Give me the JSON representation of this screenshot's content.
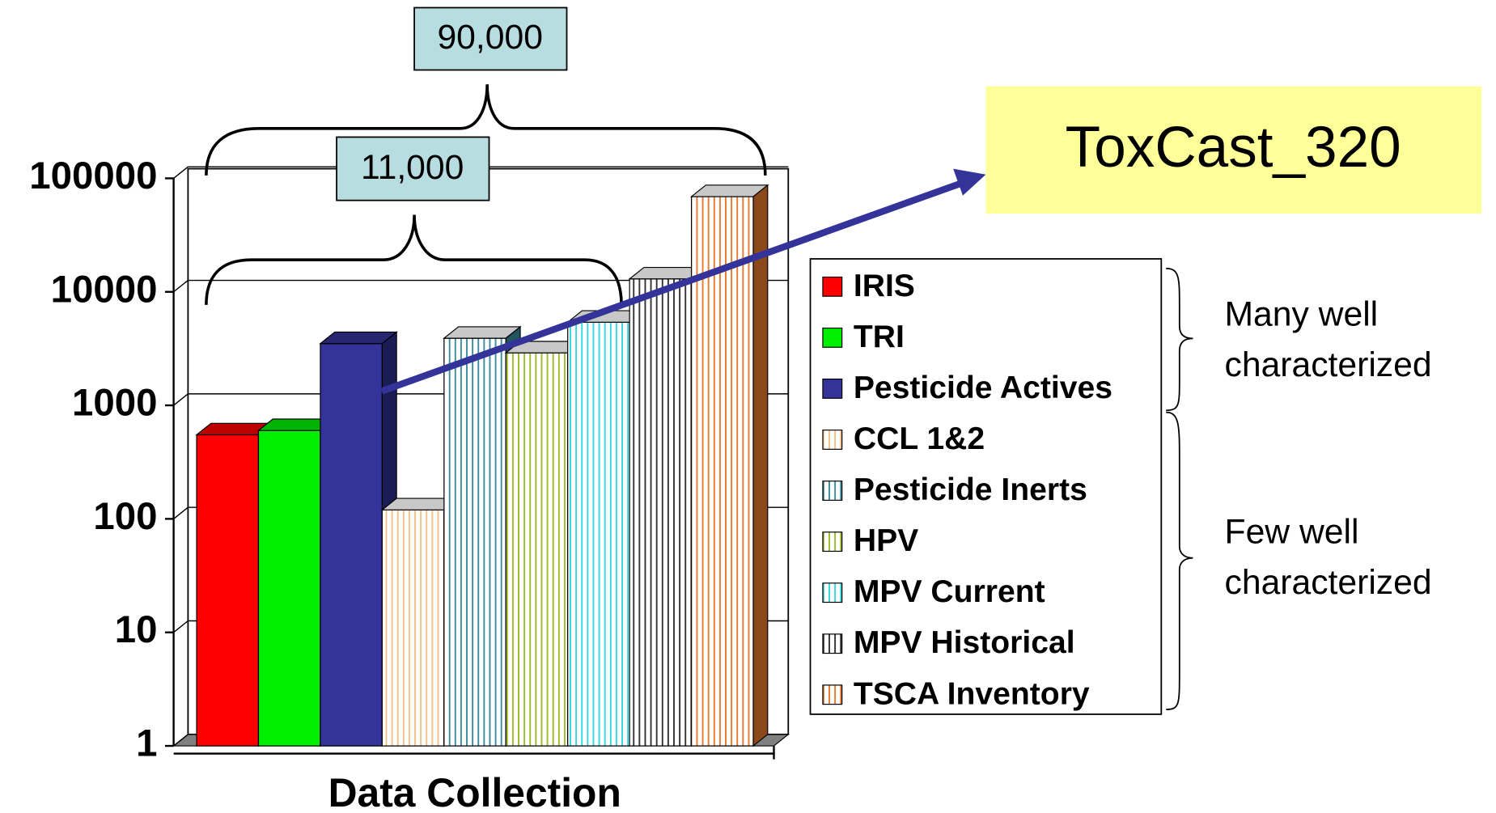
{
  "chart_data": {
    "type": "bar",
    "x_label": "Data Collection",
    "log_scale": true,
    "ylim": [
      1,
      100000
    ],
    "yticks": [
      1,
      10,
      100,
      1000,
      10000,
      100000
    ],
    "grid": true,
    "series": [
      {
        "name": "IRIS",
        "color": "#ff0000",
        "pattern": "solid",
        "values": [
          550
        ]
      },
      {
        "name": "TRI",
        "color": "#00ee00",
        "pattern": "solid",
        "values": [
          600
        ]
      },
      {
        "name": "Pesticide Actives",
        "color": "#333399",
        "pattern": "solid",
        "values": [
          3500
        ]
      },
      {
        "name": "CCL 1&2",
        "color": "#f4c08a",
        "pattern": "stripes",
        "values": [
          120
        ]
      },
      {
        "name": "Pesticide Inerts",
        "color": "#3c8ca0",
        "pattern": "stripes",
        "values": [
          3900
        ]
      },
      {
        "name": "HPV",
        "color": "#9cba2c",
        "pattern": "stripes",
        "values": [
          2900
        ]
      },
      {
        "name": "MPV Current",
        "color": "#30d8e0",
        "pattern": "stripes",
        "values": [
          5400
        ]
      },
      {
        "name": "MPV Historical",
        "color": "#333333",
        "pattern": "stripes",
        "values": [
          13000
        ]
      },
      {
        "name": "TSCA Inventory",
        "color": "#e8782c",
        "pattern": "stripes",
        "values": [
          69000
        ]
      }
    ],
    "annotations": {
      "total": "90,000",
      "subtotal": "11,000",
      "target": "ToxCast_320",
      "many": [
        "Many well",
        "characterized"
      ],
      "few": [
        "Few well",
        "characterized"
      ]
    }
  }
}
